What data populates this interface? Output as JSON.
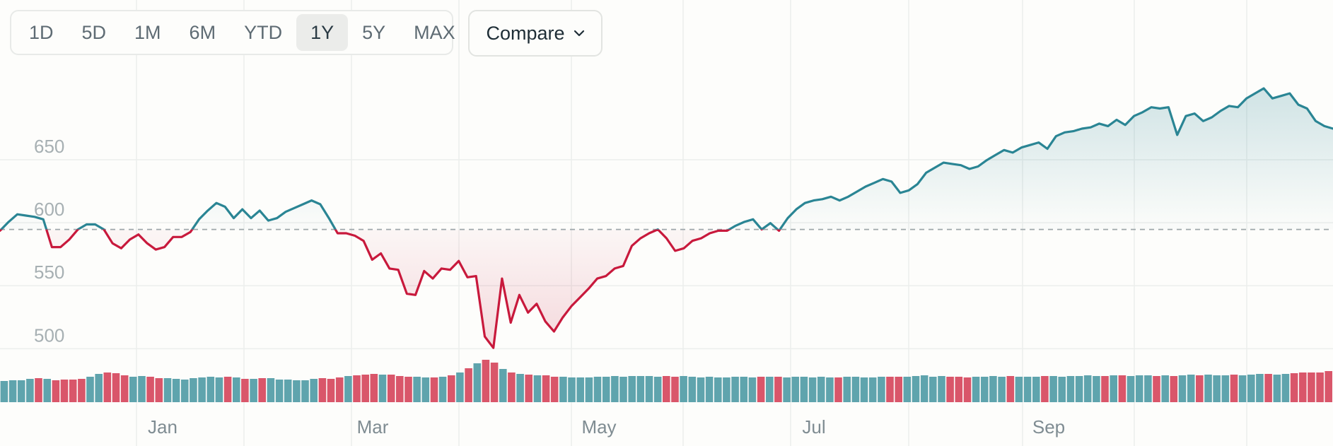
{
  "controls": {
    "ranges": [
      {
        "label": "1D",
        "active": false
      },
      {
        "label": "5D",
        "active": false
      },
      {
        "label": "1M",
        "active": false
      },
      {
        "label": "6M",
        "active": false
      },
      {
        "label": "YTD",
        "active": false
      },
      {
        "label": "1Y",
        "active": true
      },
      {
        "label": "5Y",
        "active": false
      },
      {
        "label": "MAX",
        "active": false
      }
    ],
    "compare_label": "Compare"
  },
  "colors": {
    "up": "#2a8594",
    "down": "#c8193c",
    "up_volume": "#5fa4ad",
    "down_volume": "#d9566a",
    "baseline": "#9ea7aa",
    "grid": "#eceeec"
  },
  "chart_data": {
    "type": "line",
    "title": "",
    "xlabel": "",
    "ylabel": "",
    "y_ticks": [
      500,
      550,
      600,
      650
    ],
    "ylim": [
      480,
      710
    ],
    "x_ticks": [
      "Jan",
      "Mar",
      "May",
      "Jul",
      "Sep"
    ],
    "baseline": 584,
    "grid": true,
    "series": [
      {
        "values": [
          583,
          590,
          596,
          595,
          594,
          592,
          570,
          570,
          576,
          584,
          588,
          588,
          584,
          573,
          569,
          576,
          580,
          573,
          568,
          570,
          578,
          578,
          582,
          592,
          599,
          605,
          602,
          593,
          600,
          593,
          599,
          591,
          593,
          598,
          601,
          604,
          607,
          604,
          593,
          581,
          581,
          579,
          575,
          560,
          565,
          553,
          552,
          533,
          532,
          551,
          545,
          553,
          552,
          559,
          546,
          547,
          499,
          490,
          545,
          510,
          532,
          518,
          525,
          511,
          503,
          514,
          523,
          530,
          537,
          545,
          547,
          553,
          555,
          571,
          577,
          581,
          584,
          577,
          567,
          569,
          575,
          577,
          581,
          583,
          583,
          587,
          590,
          592,
          584,
          589,
          583,
          593,
          600,
          605,
          607,
          608,
          610,
          607,
          610,
          614,
          618,
          621,
          624,
          622,
          613,
          615,
          620,
          629,
          633,
          637,
          636,
          635,
          632,
          634,
          639,
          643,
          647,
          645,
          649,
          651,
          653,
          648,
          658,
          661,
          662,
          664,
          665,
          668,
          666,
          671,
          667,
          674,
          677,
          681,
          680,
          681,
          659,
          674,
          676,
          670,
          673,
          678,
          682,
          681,
          688,
          692,
          696,
          688,
          690,
          692,
          683,
          680,
          670,
          666,
          664
        ]
      }
    ],
    "volume": [
      30,
      31,
      31,
      33,
      34,
      33,
      31,
      32,
      32,
      33,
      36,
      40,
      42,
      41,
      38,
      36,
      37,
      36,
      34,
      34,
      33,
      32,
      34,
      35,
      36,
      35,
      36,
      35,
      33,
      33,
      34,
      34,
      32,
      32,
      31,
      31,
      33,
      34,
      33,
      35,
      37,
      38,
      39,
      40,
      39,
      39,
      37,
      36,
      36,
      35,
      35,
      36,
      38,
      42,
      48,
      55,
      60,
      56,
      47,
      42,
      40,
      39,
      38,
      38,
      36,
      36,
      35,
      35,
      35,
      36,
      36,
      37,
      36,
      37,
      37,
      37,
      36,
      37,
      36,
      37,
      36,
      35,
      36,
      35,
      35,
      36,
      36,
      35,
      36,
      36,
      36,
      35,
      36,
      36,
      35,
      36,
      35,
      35,
      36,
      36,
      35,
      35,
      36,
      36,
      36,
      36,
      37,
      38,
      36,
      37,
      36,
      36,
      35,
      36,
      36,
      37,
      36,
      37,
      36,
      36,
      36,
      37,
      37,
      36,
      37,
      37,
      38,
      37,
      37,
      38,
      38,
      37,
      38,
      38,
      37,
      38,
      37,
      38,
      39,
      38,
      39,
      38,
      38,
      39,
      38,
      39,
      40,
      40,
      39,
      40,
      41,
      42,
      42,
      42,
      44
    ],
    "volume_up": [
      1,
      1,
      1,
      1,
      0,
      1,
      0,
      0,
      0,
      0,
      1,
      1,
      0,
      0,
      0,
      1,
      1,
      0,
      0,
      1,
      1,
      1,
      1,
      1,
      1,
      1,
      0,
      1,
      0,
      1,
      0,
      1,
      1,
      1,
      1,
      1,
      1,
      0,
      0,
      0,
      1,
      0,
      0,
      0,
      1,
      0,
      0,
      0,
      1,
      1,
      0,
      1,
      0,
      1,
      0,
      1,
      0,
      0,
      1,
      0,
      1,
      0,
      1,
      0,
      0,
      1,
      1,
      1,
      1,
      1,
      1,
      1,
      1,
      1,
      1,
      1,
      1,
      0,
      0,
      1,
      1,
      1,
      1,
      1,
      1,
      1,
      1,
      1,
      0,
      1,
      0,
      1,
      1,
      1,
      1,
      1,
      1,
      0,
      1,
      1,
      1,
      1,
      1,
      0,
      0,
      1,
      1,
      1,
      1,
      1,
      0,
      0,
      0,
      1,
      1,
      1,
      1,
      0,
      1,
      1,
      1,
      0,
      1,
      1,
      1,
      1,
      1,
      1,
      0,
      1,
      0,
      1,
      1,
      1,
      0,
      1,
      0,
      1,
      1,
      0,
      1,
      1,
      1,
      0,
      1,
      1,
      1,
      0,
      1,
      1,
      0,
      0,
      0,
      0,
      0
    ]
  }
}
